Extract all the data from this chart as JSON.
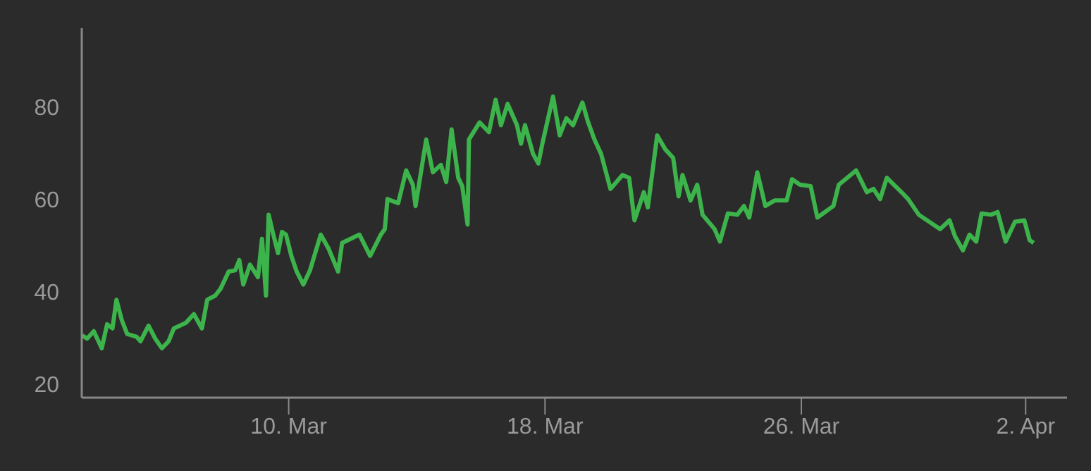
{
  "chart_data": {
    "type": "line",
    "x": [
      "--03-03T13:00",
      "--03-03T17:00",
      "--03-03T22:00",
      "--03-04T04:00",
      "--03-04T08:00",
      "--03-04T12:00",
      "--03-04T15:00",
      "--03-04T19:00",
      "--03-04T23:00",
      "--03-05T06:00",
      "--03-05T09:00",
      "--03-05T15:00",
      "--03-05T20:00",
      "--03-06T01:00",
      "--03-06T06:00",
      "--03-06T10:00",
      "--03-06T19:00",
      "--03-07T01:00",
      "--03-07T07:00",
      "--03-07T11:00",
      "--03-07T17:00",
      "--03-07T21:00",
      "--03-08T03:00",
      "--03-08T08:00",
      "--03-08T11:00",
      "--03-08T14:00",
      "--03-08T19:00",
      "--03-09T01:00",
      "--03-09T04:00",
      "--03-09T07:00",
      "--03-09T09:00",
      "--03-09T12:00",
      "--03-09T16:00",
      "--03-09T19:00",
      "--03-09T22:00",
      "--03-10T02:00",
      "--03-10T06:00",
      "--03-10T11:00",
      "--03-10T16:00",
      "--03-11T00:00",
      "--03-11T06:00",
      "--03-11T13:00",
      "--03-11T16:00",
      "--03-12T05:00",
      "--03-12T13:00",
      "--03-12T21:00",
      "--03-13T00:00",
      "--03-13T02:00",
      "--03-13T10:00",
      "--03-13T16:00",
      "--03-13T21:00",
      "--03-13T23:00",
      "--03-14T07:00",
      "--03-14T12:00",
      "--03-14T18:00",
      "--03-14T22:00",
      "--03-15T02:00",
      "--03-15T07:00",
      "--03-15T10:00",
      "--03-15T14:00",
      "--03-15T15:00",
      "--03-15T23:00",
      "--03-16T06:00",
      "--03-16T11:00",
      "--03-16T15:00",
      "--03-16T20:00",
      "--03-17T03:00",
      "--03-17T06:00",
      "--03-17T09:00",
      "--03-17T15:00",
      "--03-17T19:00",
      "--03-17T22:00",
      "--03-18T06:00",
      "--03-18T11:00",
      "--03-18T16:00",
      "--03-18T21:00",
      "--03-19T04:00",
      "--03-19T08:00",
      "--03-19T13:00",
      "--03-19T18:00",
      "--03-20T01:00",
      "--03-20T10:00",
      "--03-20T15:00",
      "--03-20T19:00",
      "--03-21T02:00",
      "--03-21T05:00",
      "--03-21T12:00",
      "--03-21T18:00",
      "--03-22T00:00",
      "--03-22T04:00",
      "--03-22T07:00",
      "--03-22T13:00",
      "--03-22T18:00",
      "--03-22T22:00",
      "--03-23T07:00",
      "--03-23T11:00",
      "--03-23T17:00",
      "--03-24T00:00",
      "--03-24T05:00",
      "--03-24T09:00",
      "--03-24T15:00",
      "--03-24T21:00",
      "--03-25T04:00",
      "--03-25T13:00",
      "--03-25T17:00",
      "--03-25T23:00",
      "--03-26T07:00",
      "--03-26T12:00",
      "--03-27T00:00",
      "--03-27T04:00",
      "--03-27T17:00",
      "--03-28T01:00",
      "--03-28T06:00",
      "--03-28T11:00",
      "--03-28T16:00",
      "--03-29T03:00",
      "--03-29T08:00",
      "--03-29T16:00",
      "--03-30T08:00",
      "--03-30T15:00",
      "--03-30T19:00",
      "--03-31T01:00",
      "--03-31T06:00",
      "--03-31T11:00",
      "--03-31T15:00",
      "--03-31T22:00",
      "--04-01T03:00",
      "--04-01T09:00",
      "--04-01T16:00",
      "--04-01T23:00",
      "--04-02T03:00",
      "--04-02T06:00"
    ],
    "series": [
      {
        "color": "#3cb44b",
        "values": [
          30.5,
          29.8,
          31.4,
          27.7,
          32.9,
          32.0,
          38.2,
          33.8,
          30.8,
          30.2,
          29.2,
          32.6,
          29.8,
          27.7,
          29.2,
          32.0,
          33.2,
          35.1,
          32.0,
          38.2,
          39.1,
          40.6,
          44.3,
          44.6,
          46.8,
          41.5,
          45.8,
          43.1,
          51.4,
          39.1,
          56.6,
          52.9,
          48.3,
          52.9,
          52.3,
          47.7,
          44.3,
          41.5,
          44.6,
          52.3,
          49.2,
          44.3,
          50.5,
          52.3,
          47.7,
          52.3,
          53.5,
          60.0,
          59.1,
          66.2,
          63.1,
          58.5,
          72.9,
          65.8,
          67.4,
          63.7,
          75.1,
          64.6,
          62.8,
          54.5,
          72.9,
          76.6,
          74.5,
          81.5,
          76.0,
          80.6,
          76.0,
          72.0,
          76.0,
          69.8,
          67.7,
          72.0,
          82.2,
          73.8,
          77.5,
          76.0,
          80.9,
          76.9,
          72.9,
          69.8,
          62.2,
          65.2,
          64.6,
          55.4,
          61.5,
          58.2,
          73.8,
          70.8,
          68.9,
          60.6,
          65.2,
          59.7,
          63.1,
          56.6,
          53.5,
          50.8,
          56.9,
          56.6,
          58.5,
          56.0,
          65.8,
          58.5,
          59.7,
          59.7,
          64.3,
          63.1,
          62.8,
          56.0,
          58.5,
          63.1,
          66.2,
          61.5,
          62.2,
          60.0,
          64.6,
          61.5,
          60.0,
          56.6,
          53.5,
          55.4,
          52.0,
          48.9,
          52.3,
          50.8,
          56.9,
          56.6,
          57.2,
          50.8,
          55.1,
          55.4,
          51.1,
          50.5
        ]
      }
    ],
    "xlim": [
      "--03-03T13:00",
      "--04-03T07:00"
    ],
    "xticks": [
      {
        "value": "--03-10",
        "label": "10. Mar"
      },
      {
        "value": "--03-18",
        "label": "18. Mar"
      },
      {
        "value": "--03-26",
        "label": "26. Mar"
      },
      {
        "value": "--04-02",
        "label": "2. Apr"
      }
    ],
    "ylim": [
      17,
      97
    ],
    "yticks": [
      20,
      40,
      60,
      80
    ],
    "marker": "none",
    "line_style": "solid"
  }
}
